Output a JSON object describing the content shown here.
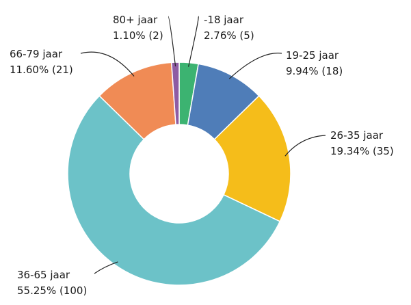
{
  "chart_data": {
    "type": "pie",
    "style": "donut",
    "title": "",
    "slices": [
      {
        "label": "-18 jaar",
        "value_text": "2.76% (5)",
        "percent": 2.76,
        "count": 5,
        "color": "#3cb371"
      },
      {
        "label": "19-25 jaar",
        "value_text": "9.94% (18)",
        "percent": 9.94,
        "count": 18,
        "color": "#4f7db8"
      },
      {
        "label": "26-35 jaar",
        "value_text": "19.34% (35)",
        "percent": 19.34,
        "count": 35,
        "color": "#f5bd1a"
      },
      {
        "label": "36-65 jaar",
        "value_text": "55.25% (100)",
        "percent": 55.25,
        "count": 100,
        "color": "#6cc2c8"
      },
      {
        "label": "66-79 jaar",
        "value_text": "11.60% (21)",
        "percent": 11.6,
        "count": 21,
        "color": "#f08b55"
      },
      {
        "label": "80+ jaar",
        "value_text": "1.10% (2)",
        "percent": 1.1,
        "count": 2,
        "color": "#8e5ca3"
      }
    ]
  }
}
